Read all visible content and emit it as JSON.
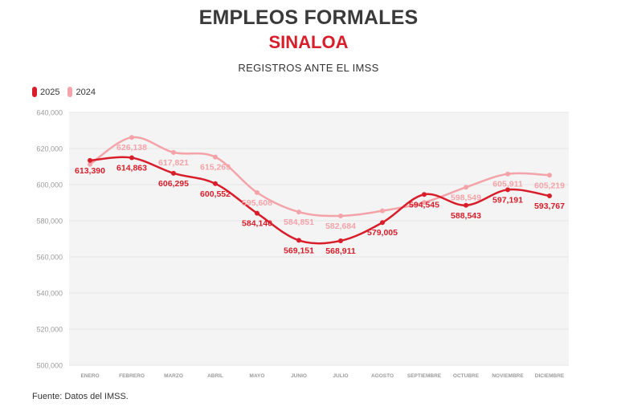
{
  "header": {
    "title": "EMPLEOS FORMALES",
    "subtitle": "SINALOA",
    "caption": "REGISTROS ANTE EL IMSS"
  },
  "footer": {
    "source": "Fuente: Datos del IMSS."
  },
  "colors": {
    "series_2025": "#d81e2a",
    "series_2024": "#f4a3a8",
    "plot_bg": "#f4f4f4",
    "axis_text": "#9a9a9a"
  },
  "chart_data": {
    "type": "line",
    "title": "EMPLEOS FORMALES",
    "subtitle": "SINALOA",
    "xlabel": "",
    "ylabel": "",
    "ylim": [
      500000,
      640000
    ],
    "yticks": [
      500000,
      520000,
      540000,
      560000,
      580000,
      600000,
      620000,
      640000
    ],
    "ytick_labels": [
      "500,000",
      "520,000",
      "540,000",
      "560,000",
      "580,000",
      "600,000",
      "620,000",
      "640,000"
    ],
    "categories": [
      "ENERO",
      "FEBRERO",
      "MARZO",
      "ABRIL",
      "MAYO",
      "JUNIO",
      "JULIO",
      "AGOSTO",
      "SEPTIEMBRE",
      "OCTUBRE",
      "NOVIEMBRE",
      "DICIEMBRE"
    ],
    "legend_position": "top-left",
    "series": [
      {
        "name": "2025",
        "values": [
          613390,
          614863,
          606295,
          600552,
          584140,
          569151,
          568911,
          579005,
          594545,
          588543,
          597191,
          593767
        ],
        "labels": [
          "613,390",
          "614,863",
          "606,295",
          "600,552",
          "584,140",
          "569,151",
          "568,911",
          "579,005",
          "594,545",
          "588,543",
          "597,191",
          "593,767"
        ]
      },
      {
        "name": "2024",
        "values": [
          611200,
          626138,
          617821,
          615269,
          595608,
          584851,
          582684,
          585500,
          590100,
          598549,
          605911,
          605219
        ],
        "labels": [
          "",
          "626,138",
          "617,821",
          "615,269",
          "595,608",
          "584,851",
          "582,684",
          "",
          "",
          "598,549",
          "605,911",
          "605,219"
        ]
      }
    ]
  }
}
